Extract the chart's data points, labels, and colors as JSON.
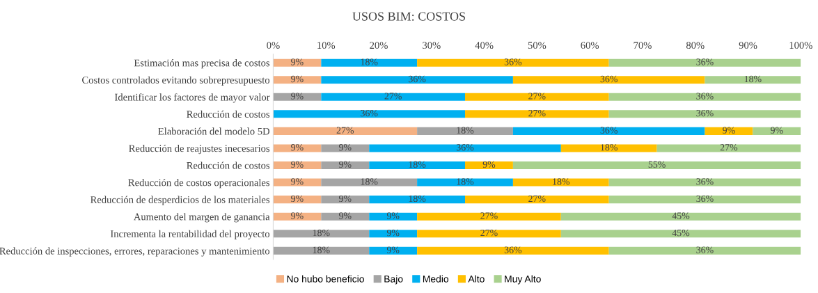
{
  "chart_data": {
    "type": "bar",
    "orientation": "horizontal",
    "stacked": true,
    "title": "USOS BIM: COSTOS",
    "categories": [
      "Estimación mas precisa de costos",
      "Costos controlados evitando sobrepresupuesto",
      "Identificar los factores de mayor valor",
      "Reducción de costos",
      "Elaboración del modelo 5D",
      "Reducción de reajustes inecesarios",
      "Reducción de costos",
      "Reducción de costos operacionales",
      "Reducción de desperdicios de los materiales",
      "Aumento del margen de ganancia",
      "Incrementa la rentabilidad del proyecto",
      "Reducción de inspecciones, errores, reparaciones y mantenimiento"
    ],
    "series": [
      {
        "name": "No hubo beneficio",
        "color": "#f4b183",
        "values": [
          9.09,
          9.09,
          null,
          null,
          27.27,
          9.09,
          9.09,
          9.09,
          9.09,
          9.09,
          null,
          null
        ],
        "value_labels": [
          "9%",
          "9%",
          null,
          null,
          "27%",
          "9%",
          "9%",
          "9%",
          "9%",
          "9%",
          null,
          null
        ]
      },
      {
        "name": "Bajo",
        "color": "#a5a5a5",
        "values": [
          null,
          null,
          9.09,
          null,
          18.18,
          9.09,
          9.09,
          18.18,
          9.09,
          9.09,
          18.18,
          18.18
        ],
        "value_labels": [
          null,
          null,
          "9%",
          null,
          "18%",
          "9%",
          "9%",
          "18%",
          "9%",
          "9%",
          "18%",
          "18%"
        ]
      },
      {
        "name": "Medio",
        "color": "#00b0f0",
        "values": [
          18.18,
          36.36,
          27.27,
          36.36,
          36.36,
          36.36,
          18.18,
          18.18,
          18.18,
          9.09,
          9.09,
          9.09
        ],
        "value_labels": [
          "18%",
          "36%",
          "27%",
          "36%",
          "36%",
          "36%",
          "18%",
          "18%",
          "18%",
          "9%",
          "9%",
          "9%"
        ]
      },
      {
        "name": "Alto",
        "color": "#ffc000",
        "values": [
          36.36,
          36.36,
          27.27,
          27.27,
          9.09,
          18.18,
          9.09,
          18.18,
          27.27,
          27.27,
          27.27,
          36.36
        ],
        "value_labels": [
          "36%",
          "36%",
          "27%",
          "27%",
          "9%",
          "18%",
          "9%",
          "18%",
          "27%",
          "27%",
          "27%",
          "36%"
        ]
      },
      {
        "name": "Muy Alto",
        "color": "#a9d18e",
        "values": [
          36.36,
          18.18,
          36.36,
          36.36,
          9.09,
          27.27,
          54.55,
          36.36,
          36.36,
          45.45,
          45.45,
          36.36
        ],
        "value_labels": [
          "36%",
          "18%",
          "36%",
          "36%",
          "9%",
          "27%",
          "55%",
          "36%",
          "36%",
          "45%",
          "45%",
          "36%"
        ]
      }
    ],
    "xlim": [
      0,
      100
    ],
    "xticks": [
      {
        "value": 0,
        "label": "0%"
      },
      {
        "value": 10,
        "label": "10%"
      },
      {
        "value": 20,
        "label": "20%"
      },
      {
        "value": 30,
        "label": "30%"
      },
      {
        "value": 40,
        "label": "40%"
      },
      {
        "value": 50,
        "label": "50%"
      },
      {
        "value": 60,
        "label": "60%"
      },
      {
        "value": 70,
        "label": "70%"
      },
      {
        "value": 80,
        "label": "80%"
      },
      {
        "value": 90,
        "label": "90%"
      },
      {
        "value": 100,
        "label": "100%"
      }
    ],
    "grid": false,
    "legend": "bottom"
  }
}
